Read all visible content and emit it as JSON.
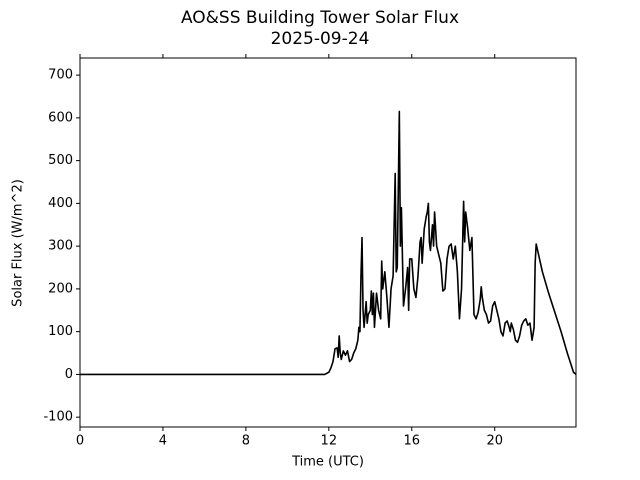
{
  "chart_data": {
    "type": "line",
    "title": "AO&SS Building Tower Solar Flux",
    "subtitle": "2025-09-24",
    "x_label": "Time (UTC)",
    "y_label": "Solar Flux (W/m^2)",
    "xlim": [
      0,
      23.92
    ],
    "xticks": [
      0,
      4,
      8,
      12,
      16,
      20
    ],
    "ylim": [
      -123,
      740
    ],
    "yticks": [
      -100,
      0,
      100,
      200,
      300,
      400,
      500,
      600,
      700
    ],
    "grid": false,
    "series": [
      {
        "color": "#000000",
        "x": [
          0,
          11.8,
          12.0,
          12.1,
          12.2,
          12.3,
          12.4,
          12.45,
          12.5,
          12.55,
          12.6,
          12.7,
          12.8,
          12.9,
          13.0,
          13.1,
          13.2,
          13.3,
          13.4,
          13.45,
          13.5,
          13.55,
          13.6,
          13.65,
          13.7,
          13.8,
          13.85,
          13.9,
          14.0,
          14.05,
          14.1,
          14.15,
          14.2,
          14.3,
          14.4,
          14.5,
          14.55,
          14.6,
          14.7,
          14.8,
          14.9,
          15.0,
          15.1,
          15.2,
          15.25,
          15.3,
          15.4,
          15.45,
          15.5,
          15.6,
          15.7,
          15.8,
          15.85,
          15.9,
          16.0,
          16.1,
          16.2,
          16.3,
          16.4,
          16.45,
          16.5,
          16.6,
          16.7,
          16.75,
          16.8,
          16.85,
          16.9,
          17.0,
          17.05,
          17.1,
          17.2,
          17.3,
          17.4,
          17.5,
          17.6,
          17.7,
          17.8,
          17.9,
          18.0,
          18.1,
          18.2,
          18.3,
          18.4,
          18.5,
          18.55,
          18.6,
          18.7,
          18.8,
          18.9,
          19.0,
          19.1,
          19.2,
          19.3,
          19.35,
          19.4,
          19.5,
          19.6,
          19.7,
          19.8,
          19.9,
          20.0,
          20.1,
          20.2,
          20.3,
          20.4,
          20.5,
          20.6,
          20.7,
          20.75,
          20.8,
          20.9,
          21.0,
          21.1,
          21.2,
          21.3,
          21.4,
          21.5,
          21.6,
          21.7,
          21.8,
          21.9,
          21.95,
          22.0,
          22.3,
          22.6,
          22.9,
          23.2,
          23.5,
          23.8,
          23.92
        ],
        "values": [
          0,
          0,
          5,
          15,
          30,
          60,
          62,
          40,
          90,
          50,
          35,
          55,
          45,
          55,
          30,
          35,
          50,
          60,
          80,
          110,
          100,
          230,
          320,
          150,
          110,
          170,
          120,
          140,
          150,
          195,
          140,
          190,
          110,
          190,
          150,
          130,
          265,
          200,
          240,
          180,
          110,
          200,
          230,
          470,
          240,
          250,
          615,
          300,
          390,
          160,
          200,
          250,
          150,
          270,
          270,
          200,
          180,
          230,
          310,
          320,
          260,
          340,
          370,
          380,
          400,
          310,
          290,
          350,
          300,
          380,
          300,
          280,
          260,
          195,
          200,
          270,
          300,
          305,
          270,
          300,
          240,
          130,
          200,
          405,
          310,
          380,
          340,
          290,
          320,
          140,
          130,
          145,
          175,
          205,
          180,
          150,
          140,
          120,
          125,
          160,
          170,
          150,
          130,
          100,
          90,
          120,
          125,
          110,
          100,
          120,
          105,
          80,
          75,
          90,
          115,
          125,
          130,
          115,
          120,
          80,
          110,
          260,
          305,
          240,
          190,
          145,
          100,
          50,
          5,
          0
        ]
      }
    ]
  }
}
